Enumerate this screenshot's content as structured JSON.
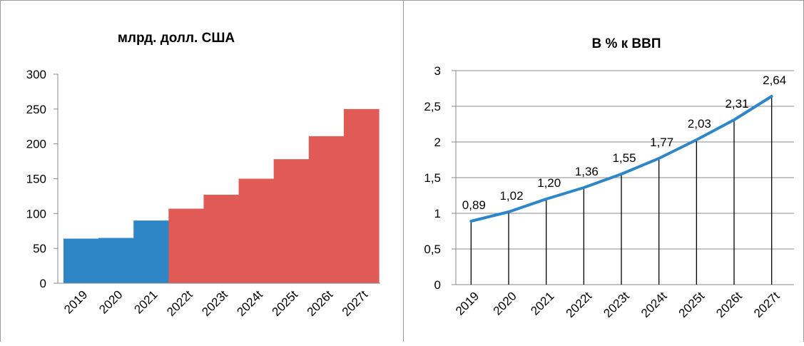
{
  "chart_data": [
    {
      "type": "bar",
      "title": "млрд. долл. США",
      "categories": [
        "2019",
        "2020",
        "2021",
        "2022t",
        "2023t",
        "2024t",
        "2025t",
        "2026t",
        "2027t"
      ],
      "values": [
        64,
        65,
        90,
        107,
        127,
        150,
        178,
        211,
        250
      ],
      "bar_colors": [
        "#2f86c6",
        "#2f86c6",
        "#2f86c6",
        "#e05a56",
        "#e05a56",
        "#e05a56",
        "#e05a56",
        "#e05a56",
        "#e05a56"
      ],
      "ylim": [
        0,
        300
      ],
      "yticks": [
        "0",
        "50",
        "100",
        "150",
        "200",
        "250",
        "300"
      ],
      "grid": false
    },
    {
      "type": "line",
      "title": "В % к ВВП",
      "categories": [
        "2019",
        "2020",
        "2021",
        "2022t",
        "2023t",
        "2024t",
        "2025t",
        "2026t",
        "2027t"
      ],
      "values": [
        0.89,
        1.02,
        1.2,
        1.36,
        1.55,
        1.77,
        2.03,
        2.31,
        2.64
      ],
      "data_labels": [
        "0,89",
        "1,02",
        "1,20",
        "1,36",
        "1,55",
        "1,77",
        "2,03",
        "2,31",
        "2,64"
      ],
      "line_color": "#2f86c6",
      "ylim": [
        0,
        3
      ],
      "yticks": [
        "0",
        "0,5",
        "1",
        "1,5",
        "2",
        "2,5",
        "3"
      ],
      "grid": true,
      "drop_lines": true
    }
  ]
}
